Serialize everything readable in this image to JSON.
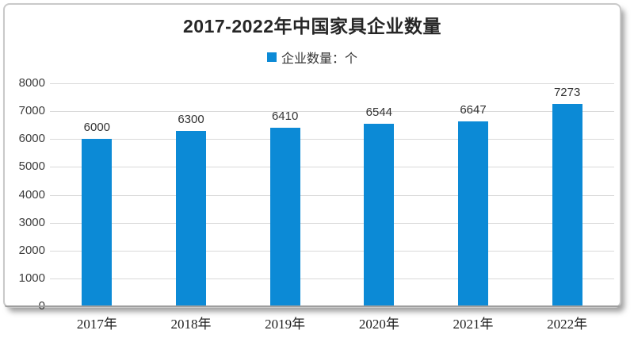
{
  "title": {
    "text": "2017-2022年中国家具企业数量",
    "color": "#262626"
  },
  "legend": {
    "label": "企业数量：个",
    "marker_color": "#0c8ad6"
  },
  "chart_data": {
    "type": "bar",
    "title": "2017-2022年中国家具企业数量",
    "legend_entries": [
      "企业数量：个"
    ],
    "categories": [
      "2017年",
      "2018年",
      "2019年",
      "2020年",
      "2021年",
      "2022年"
    ],
    "values": [
      6000,
      6300,
      6410,
      6544,
      6647,
      7273
    ],
    "data_labels": [
      "6000",
      "6300",
      "6410",
      "6544",
      "6647",
      "7273"
    ],
    "xlabel": "",
    "ylabel": "",
    "ylim": [
      0,
      8000
    ],
    "ytick_step": 1000,
    "yticks": [
      "0",
      "1000",
      "2000",
      "3000",
      "4000",
      "5000",
      "6000",
      "7000",
      "8000"
    ],
    "grid": true,
    "legend_position": "top-center",
    "bar_color": "#0c8ad6",
    "gridline_color": "#d9d9d9",
    "axis_line_color": "#9e9e9e"
  }
}
